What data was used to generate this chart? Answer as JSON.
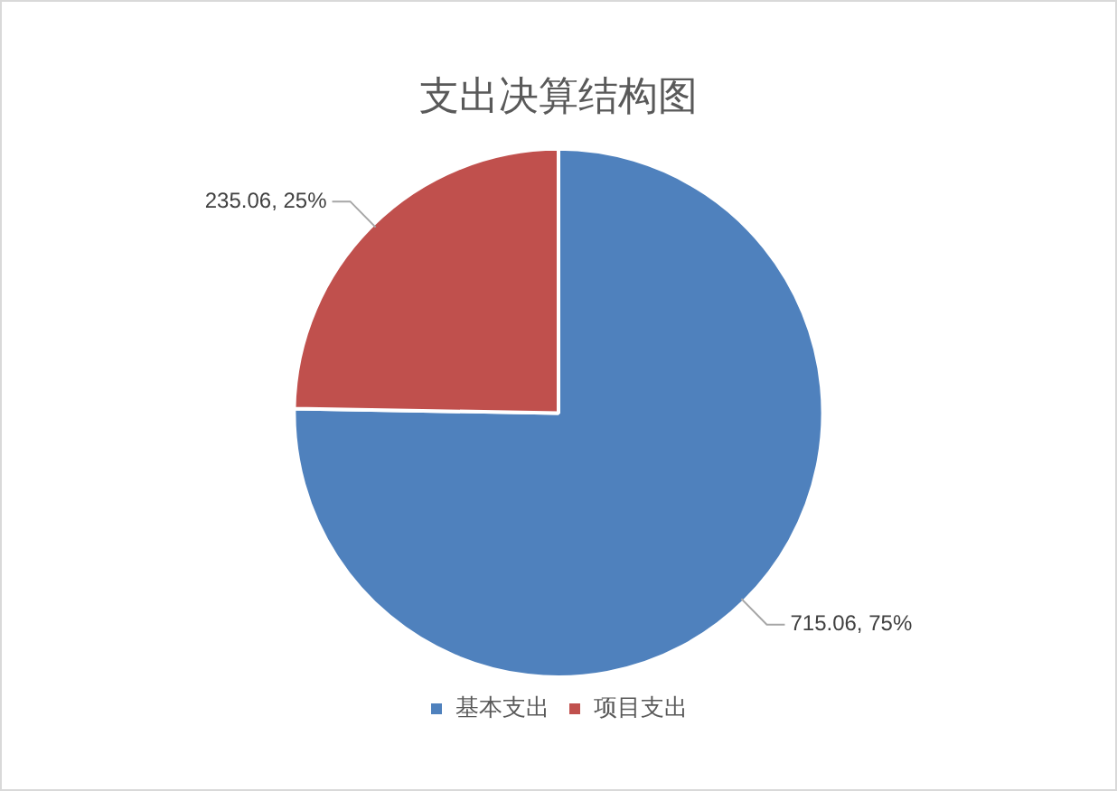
{
  "chart_data": {
    "type": "pie",
    "title": "支出决算结构图",
    "categories": [
      "基本支出",
      "项目支出"
    ],
    "values": [
      715.06,
      235.06
    ],
    "colors": [
      "#4f81bd",
      "#c0504d"
    ],
    "value_labels": [
      "715.06, 75%",
      "235.06, 25%"
    ],
    "legend": "bottom"
  }
}
